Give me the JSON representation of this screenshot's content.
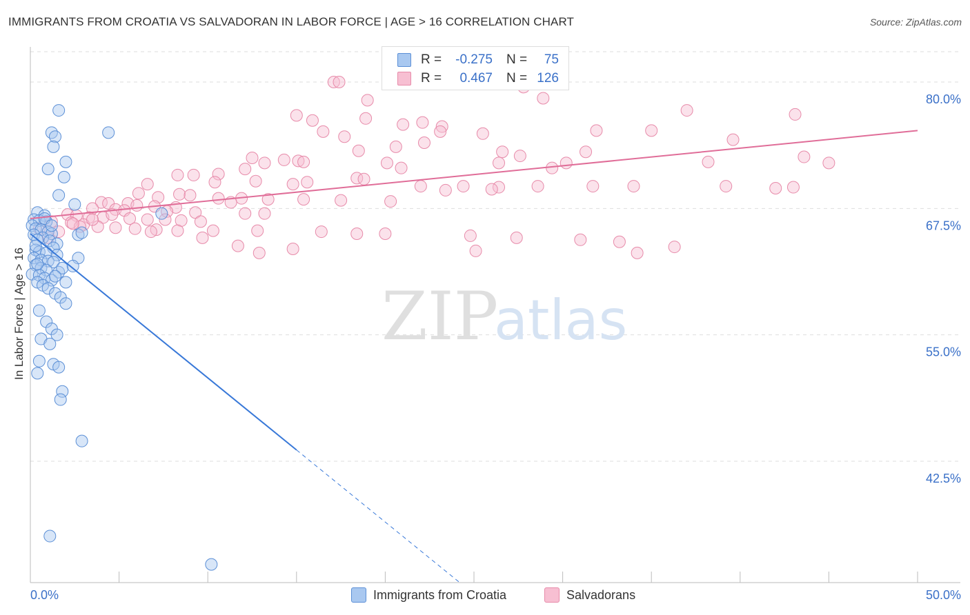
{
  "title": "IMMIGRANTS FROM CROATIA VS SALVADORAN IN LABOR FORCE | AGE > 16 CORRELATION CHART",
  "source": "Source: ZipAtlas.com",
  "watermark": {
    "zip": "ZIP",
    "atlas": "atlas"
  },
  "legend": {
    "series1": {
      "r_label": "R =",
      "r_value": "-0.275",
      "n_label": "N =",
      "n_value": "75"
    },
    "series2": {
      "r_label": "R =",
      "r_value": "0.467",
      "n_label": "N =",
      "n_value": "126"
    }
  },
  "colors": {
    "blue_fill": "#a9c8f0",
    "blue_stroke": "#5b8fd6",
    "blue_line": "#3878d8",
    "pink_fill": "#f7bfd2",
    "pink_stroke": "#e78aa9",
    "pink_line": "#e06d98",
    "tick_text": "#3a70c8"
  },
  "chart_data": {
    "type": "scatter",
    "title": "IMMIGRANTS FROM CROATIA VS SALVADORAN IN LABOR FORCE | AGE > 16 CORRELATION CHART",
    "xlabel": "",
    "ylabel": "In Labor Force | Age > 16",
    "xlim": [
      0,
      50
    ],
    "ylim": [
      30.5,
      83.0
    ],
    "x_tick_labels": [
      "0.0%",
      "50.0%"
    ],
    "y_ticks": [
      42.5,
      55.0,
      67.5,
      80.0
    ],
    "y_tick_labels": [
      "42.5%",
      "55.0%",
      "67.5%",
      "80.0%"
    ],
    "legend_position": "bottom",
    "series": [
      {
        "name": "Immigrants from Croatia",
        "r": -0.275,
        "n": 75,
        "trend": {
          "x0": 0.0,
          "y0": 65.0,
          "x_solid_end": 15.0,
          "x_dash_end": 24.2
        },
        "points": [
          [
            1.6,
            77.2
          ],
          [
            4.4,
            75.0
          ],
          [
            1.2,
            75.0
          ],
          [
            1.4,
            74.6
          ],
          [
            1.3,
            73.6
          ],
          [
            2.0,
            72.1
          ],
          [
            1.0,
            71.4
          ],
          [
            1.9,
            70.6
          ],
          [
            1.6,
            68.8
          ],
          [
            2.5,
            67.9
          ],
          [
            7.4,
            67.0
          ],
          [
            0.4,
            67.1
          ],
          [
            0.8,
            66.8
          ],
          [
            0.2,
            66.4
          ],
          [
            0.5,
            66.3
          ],
          [
            0.9,
            66.2
          ],
          [
            0.1,
            65.8
          ],
          [
            0.3,
            65.5
          ],
          [
            0.6,
            65.4
          ],
          [
            1.0,
            65.2
          ],
          [
            1.2,
            65.0
          ],
          [
            2.7,
            64.9
          ],
          [
            2.9,
            65.1
          ],
          [
            0.2,
            64.9
          ],
          [
            0.7,
            64.6
          ],
          [
            0.4,
            64.4
          ],
          [
            1.1,
            64.3
          ],
          [
            1.5,
            64.0
          ],
          [
            1.3,
            63.6
          ],
          [
            0.3,
            63.4
          ],
          [
            0.5,
            63.2
          ],
          [
            0.9,
            63.1
          ],
          [
            1.5,
            62.9
          ],
          [
            0.2,
            62.6
          ],
          [
            0.6,
            62.4
          ],
          [
            1.0,
            62.3
          ],
          [
            1.3,
            62.2
          ],
          [
            0.3,
            61.9
          ],
          [
            0.6,
            61.6
          ],
          [
            0.9,
            61.4
          ],
          [
            1.6,
            61.2
          ],
          [
            1.8,
            61.6
          ],
          [
            2.7,
            62.6
          ],
          [
            0.1,
            61.0
          ],
          [
            0.5,
            60.9
          ],
          [
            0.8,
            60.6
          ],
          [
            1.2,
            60.4
          ],
          [
            2.0,
            60.2
          ],
          [
            2.4,
            61.8
          ],
          [
            0.4,
            60.2
          ],
          [
            0.7,
            59.9
          ],
          [
            1.0,
            59.6
          ],
          [
            1.4,
            59.1
          ],
          [
            1.7,
            58.7
          ],
          [
            2.0,
            58.1
          ],
          [
            0.5,
            57.4
          ],
          [
            0.9,
            56.3
          ],
          [
            1.2,
            55.6
          ],
          [
            1.5,
            55.0
          ],
          [
            0.6,
            54.6
          ],
          [
            1.1,
            54.1
          ],
          [
            0.5,
            52.4
          ],
          [
            1.3,
            52.1
          ],
          [
            1.6,
            51.8
          ],
          [
            0.4,
            51.2
          ],
          [
            1.8,
            49.4
          ],
          [
            1.7,
            48.6
          ],
          [
            2.9,
            44.5
          ],
          [
            1.1,
            35.1
          ],
          [
            10.2,
            32.3
          ],
          [
            0.3,
            63.8
          ],
          [
            0.8,
            66.5
          ],
          [
            1.2,
            65.8
          ],
          [
            0.4,
            62.0
          ],
          [
            1.4,
            60.8
          ]
        ]
      },
      {
        "name": "Salvadorans",
        "r": 0.467,
        "n": 126,
        "trend": {
          "x0": 0.0,
          "y0": 66.5,
          "x1": 50.0,
          "y1": 75.2
        },
        "points": [
          [
            17.1,
            80.0
          ],
          [
            27.8,
            79.5
          ],
          [
            28.9,
            78.4
          ],
          [
            17.4,
            80.0
          ],
          [
            19.0,
            78.2
          ],
          [
            37.0,
            77.2
          ],
          [
            43.1,
            76.8
          ],
          [
            15.0,
            76.7
          ],
          [
            15.9,
            76.2
          ],
          [
            18.9,
            76.4
          ],
          [
            21.0,
            75.8
          ],
          [
            22.1,
            76.0
          ],
          [
            23.2,
            75.6
          ],
          [
            16.5,
            75.1
          ],
          [
            17.7,
            74.6
          ],
          [
            31.9,
            75.2
          ],
          [
            35.0,
            75.2
          ],
          [
            23.1,
            75.1
          ],
          [
            25.5,
            74.9
          ],
          [
            39.6,
            74.3
          ],
          [
            22.2,
            74.0
          ],
          [
            20.6,
            73.6
          ],
          [
            18.5,
            73.2
          ],
          [
            26.6,
            73.1
          ],
          [
            27.6,
            72.7
          ],
          [
            31.3,
            73.1
          ],
          [
            12.5,
            72.5
          ],
          [
            14.3,
            72.3
          ],
          [
            15.1,
            72.2
          ],
          [
            15.4,
            72.1
          ],
          [
            13.2,
            72.0
          ],
          [
            20.1,
            72.0
          ],
          [
            26.4,
            72.0
          ],
          [
            30.2,
            72.0
          ],
          [
            38.2,
            72.1
          ],
          [
            45.0,
            72.0
          ],
          [
            43.6,
            72.6
          ],
          [
            20.9,
            71.5
          ],
          [
            29.4,
            71.5
          ],
          [
            12.1,
            71.4
          ],
          [
            10.6,
            70.9
          ],
          [
            9.2,
            70.8
          ],
          [
            8.3,
            70.8
          ],
          [
            18.4,
            70.5
          ],
          [
            18.8,
            70.4
          ],
          [
            12.7,
            70.2
          ],
          [
            15.6,
            70.1
          ],
          [
            10.4,
            70.1
          ],
          [
            6.6,
            69.9
          ],
          [
            14.8,
            69.9
          ],
          [
            22.0,
            69.7
          ],
          [
            24.4,
            69.7
          ],
          [
            28.6,
            69.7
          ],
          [
            31.7,
            69.7
          ],
          [
            34.0,
            69.7
          ],
          [
            39.2,
            69.7
          ],
          [
            42.0,
            69.5
          ],
          [
            43.0,
            69.6
          ],
          [
            26.4,
            69.6
          ],
          [
            26.0,
            69.4
          ],
          [
            23.4,
            69.3
          ],
          [
            6.1,
            69.0
          ],
          [
            8.4,
            68.9
          ],
          [
            9.0,
            68.8
          ],
          [
            7.2,
            68.6
          ],
          [
            10.6,
            68.5
          ],
          [
            11.9,
            68.5
          ],
          [
            13.4,
            68.4
          ],
          [
            15.4,
            68.4
          ],
          [
            17.5,
            68.3
          ],
          [
            20.3,
            68.2
          ],
          [
            11.3,
            68.1
          ],
          [
            4.0,
            68.1
          ],
          [
            4.4,
            68.0
          ],
          [
            5.5,
            68.0
          ],
          [
            6.0,
            67.8
          ],
          [
            7.0,
            67.7
          ],
          [
            8.2,
            67.6
          ],
          [
            3.5,
            67.5
          ],
          [
            4.8,
            67.4
          ],
          [
            5.3,
            67.3
          ],
          [
            7.7,
            67.2
          ],
          [
            9.3,
            67.1
          ],
          [
            12.1,
            67.0
          ],
          [
            13.2,
            67.0
          ],
          [
            2.1,
            66.9
          ],
          [
            2.6,
            66.8
          ],
          [
            3.3,
            66.6
          ],
          [
            4.1,
            66.6
          ],
          [
            5.6,
            66.5
          ],
          [
            6.6,
            66.4
          ],
          [
            7.6,
            66.4
          ],
          [
            8.5,
            66.3
          ],
          [
            9.6,
            66.2
          ],
          [
            1.2,
            66.2
          ],
          [
            2.3,
            66.1
          ],
          [
            3.0,
            65.9
          ],
          [
            3.8,
            65.7
          ],
          [
            4.8,
            65.6
          ],
          [
            5.9,
            65.5
          ],
          [
            7.1,
            65.4
          ],
          [
            8.3,
            65.3
          ],
          [
            10.3,
            65.3
          ],
          [
            12.8,
            65.3
          ],
          [
            16.4,
            65.2
          ],
          [
            18.4,
            65.0
          ],
          [
            20.0,
            65.0
          ],
          [
            24.8,
            64.8
          ],
          [
            27.4,
            64.6
          ],
          [
            31.0,
            64.4
          ],
          [
            33.2,
            64.2
          ],
          [
            36.3,
            63.7
          ],
          [
            25.1,
            63.3
          ],
          [
            34.2,
            63.1
          ],
          [
            12.9,
            63.1
          ],
          [
            2.8,
            65.7
          ],
          [
            1.6,
            65.2
          ],
          [
            3.5,
            66.4
          ],
          [
            0.5,
            65.5
          ],
          [
            1.0,
            64.6
          ],
          [
            6.8,
            65.2
          ],
          [
            11.7,
            63.8
          ],
          [
            14.8,
            63.5
          ],
          [
            9.7,
            64.6
          ],
          [
            4.6,
            66.9
          ],
          [
            2.4,
            66.0
          ]
        ]
      }
    ]
  },
  "bottom_legend": {
    "series1": "Immigrants from Croatia",
    "series2": "Salvadorans"
  }
}
